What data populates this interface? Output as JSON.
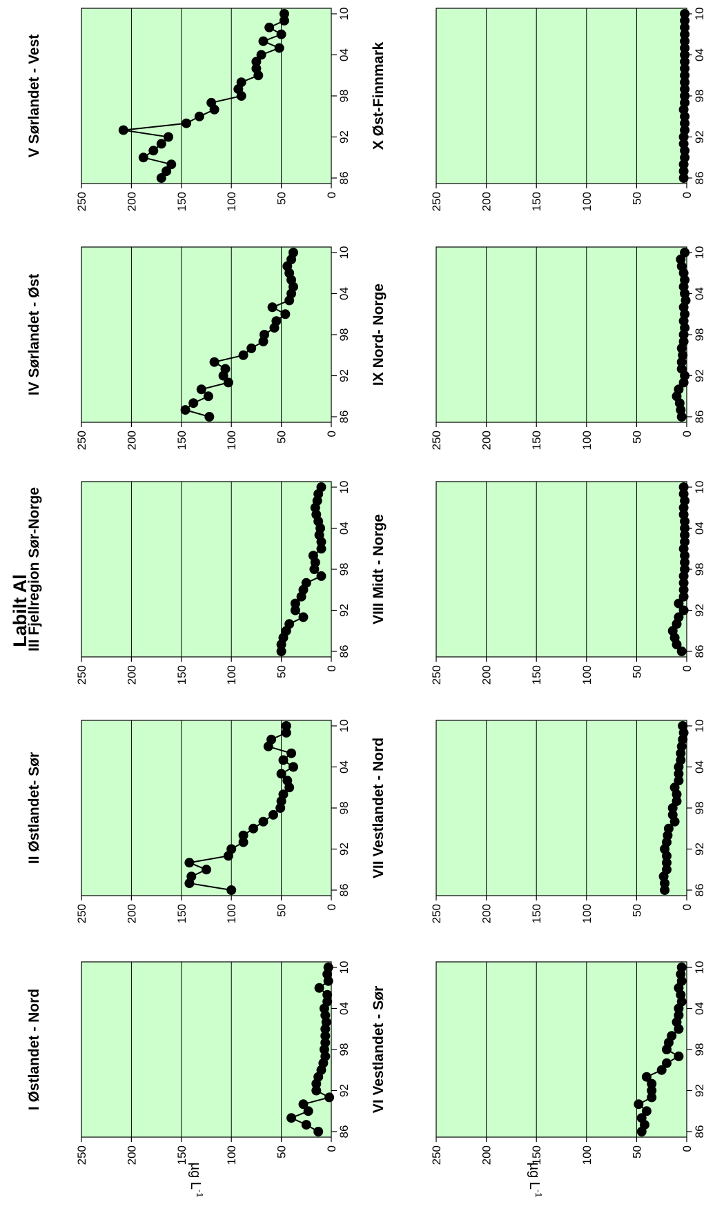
{
  "figure": {
    "main_title": "Labilt Al",
    "ylabel": "µg L",
    "ylabel_sup": "-1"
  },
  "chart_data": [
    {
      "type": "line",
      "panel": "I",
      "title": "I Østlandet - Nord",
      "x_ticks": [
        "86",
        "92",
        "98",
        "04",
        "10"
      ],
      "y_ticks": [
        0,
        50,
        100,
        150,
        200,
        250
      ],
      "ylim": [
        0,
        250
      ],
      "x": [
        1986,
        1987,
        1988,
        1989,
        1990,
        1991,
        1992,
        1993,
        1994,
        1995,
        1996,
        1997,
        1998,
        1999,
        2000,
        2001,
        2002,
        2003,
        2004,
        2005,
        2006,
        2007,
        2008,
        2009,
        2010
      ],
      "y": [
        13,
        25,
        40,
        23,
        28,
        2,
        15,
        15,
        13,
        10,
        8,
        6,
        7,
        6,
        6,
        6,
        5,
        6,
        7,
        4,
        4,
        12,
        3,
        4,
        3
      ]
    },
    {
      "type": "line",
      "panel": "II",
      "title": "II Østlandet- Sør",
      "x_ticks": [
        "86",
        "92",
        "98",
        "04",
        "10"
      ],
      "y_ticks": [
        0,
        50,
        100,
        150,
        200,
        250
      ],
      "ylim": [
        0,
        250
      ],
      "x": [
        1986,
        1987,
        1988,
        1989,
        1990,
        1991,
        1992,
        1993,
        1994,
        1995,
        1996,
        1997,
        1998,
        1999,
        2000,
        2001,
        2002,
        2003,
        2004,
        2005,
        2006,
        2007,
        2008,
        2009,
        2010
      ],
      "y": [
        100,
        142,
        140,
        125,
        142,
        103,
        100,
        88,
        88,
        78,
        68,
        58,
        51,
        50,
        48,
        42,
        44,
        50,
        38,
        48,
        40,
        63,
        60,
        45,
        45
      ]
    },
    {
      "type": "line",
      "panel": "III",
      "title": "III Fjellregion Sør-Norge",
      "x_ticks": [
        "86",
        "92",
        "98",
        "04",
        "10"
      ],
      "y_ticks": [
        0,
        50,
        100,
        150,
        200,
        250
      ],
      "ylim": [
        0,
        250
      ],
      "x": [
        1986,
        1987,
        1988,
        1989,
        1990,
        1991,
        1992,
        1993,
        1994,
        1995,
        1996,
        1997,
        1998,
        1999,
        2000,
        2001,
        2002,
        2003,
        2004,
        2005,
        2006,
        2007,
        2008,
        2009,
        2010
      ],
      "y": [
        50,
        50,
        48,
        45,
        42,
        28,
        36,
        36,
        30,
        28,
        25,
        10,
        17,
        16,
        18,
        10,
        10,
        12,
        11,
        13,
        15,
        16,
        14,
        13,
        10
      ]
    },
    {
      "type": "line",
      "panel": "IV",
      "title": "IV Sørlandet - Øst",
      "x_ticks": [
        "86",
        "92",
        "98",
        "04",
        "10"
      ],
      "y_ticks": [
        0,
        50,
        100,
        150,
        200,
        250
      ],
      "ylim": [
        0,
        250
      ],
      "x": [
        1986,
        1987,
        1988,
        1989,
        1990,
        1991,
        1992,
        1993,
        1994,
        1995,
        1996,
        1997,
        1998,
        1999,
        2000,
        2001,
        2002,
        2003,
        2004,
        2005,
        2006,
        2007,
        2008,
        2009,
        2010
      ],
      "y": [
        122,
        146,
        138,
        123,
        130,
        103,
        108,
        106,
        117,
        88,
        80,
        68,
        67,
        57,
        55,
        46,
        59,
        42,
        40,
        38,
        40,
        42,
        44,
        40,
        38
      ]
    },
    {
      "type": "line",
      "panel": "V",
      "title": "V Sørlandet - Vest",
      "x_ticks": [
        "86",
        "92",
        "98",
        "04",
        "10"
      ],
      "y_ticks": [
        0,
        50,
        100,
        150,
        200,
        250
      ],
      "ylim": [
        0,
        250
      ],
      "x": [
        1986,
        1987,
        1988,
        1989,
        1990,
        1991,
        1992,
        1993,
        1994,
        1995,
        1996,
        1997,
        1998,
        1999,
        2000,
        2001,
        2002,
        2003,
        2004,
        2005,
        2006,
        2007,
        2008,
        2009,
        2010
      ],
      "y": [
        170,
        165,
        160,
        188,
        178,
        170,
        163,
        208,
        145,
        132,
        117,
        120,
        90,
        93,
        90,
        73,
        75,
        75,
        70,
        52,
        68,
        50,
        62,
        47,
        47
      ]
    },
    {
      "type": "line",
      "panel": "VI",
      "title": "VI Vestlandet - Sør",
      "x_ticks": [
        "86",
        "92",
        "98",
        "04",
        "10"
      ],
      "y_ticks": [
        0,
        50,
        100,
        150,
        200,
        250
      ],
      "ylim": [
        0,
        250
      ],
      "x": [
        1986,
        1987,
        1988,
        1989,
        1990,
        1991,
        1992,
        1993,
        1994,
        1995,
        1996,
        1997,
        1998,
        1999,
        2000,
        2001,
        2002,
        2003,
        2004,
        2005,
        2006,
        2007,
        2008,
        2009,
        2010
      ],
      "y": [
        45,
        42,
        45,
        40,
        48,
        35,
        35,
        35,
        40,
        25,
        20,
        8,
        20,
        18,
        15,
        8,
        10,
        8,
        8,
        5,
        6,
        8,
        5,
        6,
        5
      ]
    },
    {
      "type": "line",
      "panel": "VII",
      "title": "VII Vestlandet - Nord",
      "x_ticks": [
        "86",
        "92",
        "98",
        "04",
        "10"
      ],
      "y_ticks": [
        0,
        50,
        100,
        150,
        200,
        250
      ],
      "ylim": [
        0,
        250
      ],
      "x": [
        1986,
        1987,
        1988,
        1989,
        1990,
        1991,
        1992,
        1993,
        1994,
        1995,
        1996,
        1997,
        1998,
        1999,
        2000,
        2001,
        2002,
        2003,
        2004,
        2005,
        2006,
        2007,
        2008,
        2009,
        2010
      ],
      "y": [
        22,
        22,
        23,
        20,
        20,
        20,
        22,
        20,
        19,
        18,
        12,
        14,
        14,
        10,
        10,
        12,
        8,
        8,
        8,
        6,
        6,
        5,
        4,
        3,
        4
      ]
    },
    {
      "type": "line",
      "panel": "VIII",
      "title": "VIII Midt - Norge",
      "x_ticks": [
        "86",
        "92",
        "98",
        "04",
        "10"
      ],
      "y_ticks": [
        0,
        50,
        100,
        150,
        200,
        250
      ],
      "ylim": [
        0,
        250
      ],
      "x": [
        1986,
        1987,
        1988,
        1989,
        1990,
        1991,
        1992,
        1993,
        1994,
        1995,
        1996,
        1997,
        1998,
        1999,
        2000,
        2001,
        2002,
        2003,
        2004,
        2005,
        2006,
        2007,
        2008,
        2009,
        2010
      ],
      "y": [
        5,
        10,
        12,
        14,
        10,
        8,
        3,
        8,
        3,
        3,
        3,
        3,
        2,
        2,
        2,
        3,
        2,
        2,
        2,
        2,
        3,
        3,
        2,
        3,
        3
      ]
    },
    {
      "type": "line",
      "panel": "IX",
      "title": "IX Nord- Norge",
      "x_ticks": [
        "86",
        "92",
        "98",
        "04",
        "10"
      ],
      "y_ticks": [
        0,
        50,
        100,
        150,
        200,
        250
      ],
      "ylim": [
        0,
        250
      ],
      "x": [
        1986,
        1987,
        1988,
        1989,
        1990,
        1991,
        1992,
        1993,
        1994,
        1995,
        1996,
        1997,
        1998,
        1999,
        2000,
        2001,
        2002,
        2003,
        2004,
        2005,
        2006,
        2007,
        2008,
        2009,
        2010
      ],
      "y": [
        5,
        6,
        7,
        10,
        8,
        3,
        2,
        5,
        5,
        4,
        5,
        3,
        3,
        2,
        3,
        2,
        3,
        1,
        2,
        3,
        2,
        3,
        5,
        6,
        2
      ]
    },
    {
      "type": "line",
      "panel": "X",
      "title": "X Øst-Finnmark",
      "x_ticks": [
        "86",
        "92",
        "98",
        "04",
        "10"
      ],
      "y_ticks": [
        0,
        50,
        100,
        150,
        200,
        250
      ],
      "ylim": [
        0,
        250
      ],
      "x": [
        1986,
        1987,
        1988,
        1989,
        1990,
        1991,
        1992,
        1993,
        1994,
        1995,
        1996,
        1997,
        1998,
        1999,
        2000,
        2001,
        2002,
        2003,
        2004,
        2005,
        2006,
        2007,
        2008,
        2009,
        2010
      ],
      "y": [
        3,
        3,
        3,
        2,
        2,
        3,
        3,
        2,
        2,
        2,
        3,
        2,
        2,
        2,
        2,
        2,
        2,
        2,
        2,
        2,
        2,
        2,
        2,
        2,
        2
      ]
    }
  ]
}
